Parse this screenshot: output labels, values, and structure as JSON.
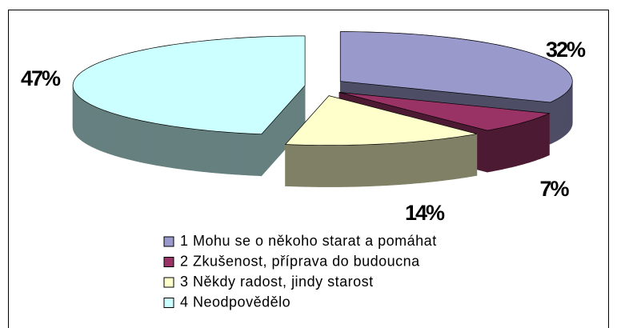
{
  "chart_data": {
    "type": "pie3d",
    "categories": [
      "1 Mohu se o někoho starat a pomáhat",
      "2 Zkušenost, příprava do budoucna",
      "3 Někdy radost, jindy starost",
      "4 Neodpovědělo"
    ],
    "values": [
      32,
      7,
      14,
      47
    ],
    "value_labels": [
      "32%",
      "7%",
      "14%",
      "47%"
    ],
    "colors": [
      "#9999cc",
      "#993366",
      "#ffffcc",
      "#ccffff"
    ]
  }
}
